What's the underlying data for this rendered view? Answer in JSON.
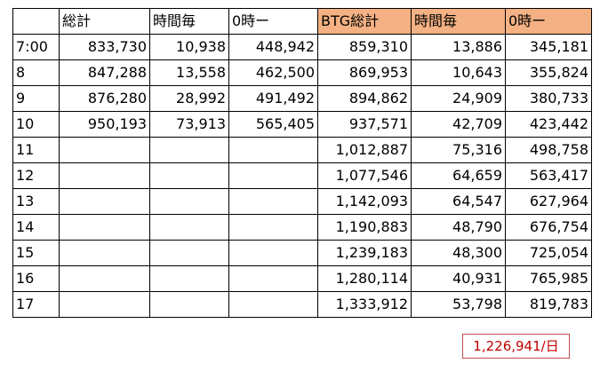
{
  "colors": {
    "header_highlight": "#f4b183",
    "total_text": "#c00000",
    "total_border": "#c0504d"
  },
  "headers": [
    "",
    "総計",
    "時間毎",
    "0時ー",
    "BTG総計",
    "時間毎",
    "0時ー"
  ],
  "rows": [
    [
      "7:00",
      "833,730",
      "10,938",
      "448,942",
      "859,310",
      "13,886",
      "345,181"
    ],
    [
      "8",
      "847,288",
      "13,558",
      "462,500",
      "869,953",
      "10,643",
      "355,824"
    ],
    [
      "9",
      "876,280",
      "28,992",
      "491,492",
      "894,862",
      "24,909",
      "380,733"
    ],
    [
      "10",
      "950,193",
      "73,913",
      "565,405",
      "937,571",
      "42,709",
      "423,442"
    ],
    [
      "11",
      "",
      "",
      "",
      "1,012,887",
      "75,316",
      "498,758"
    ],
    [
      "12",
      "",
      "",
      "",
      "1,077,546",
      "64,659",
      "563,417"
    ],
    [
      "13",
      "",
      "",
      "",
      "1,142,093",
      "64,547",
      "627,964"
    ],
    [
      "14",
      "",
      "",
      "",
      "1,190,883",
      "48,790",
      "676,754"
    ],
    [
      "15",
      "",
      "",
      "",
      "1,239,183",
      "48,300",
      "725,054"
    ],
    [
      "16",
      "",
      "",
      "",
      "1,280,114",
      "40,931",
      "765,985"
    ],
    [
      "17",
      "",
      "",
      "",
      "1,333,912",
      "53,798",
      "819,783"
    ]
  ],
  "daily_total": "1,226,941/日"
}
